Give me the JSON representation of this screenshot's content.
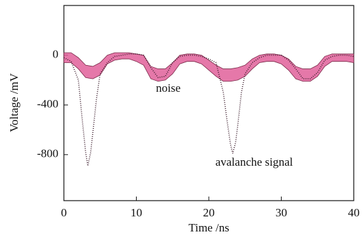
{
  "chart_data": {
    "type": "line",
    "x_label": "Time /ns",
    "y_label": "Voltage /mV",
    "xlim": [
      0,
      40
    ],
    "xticks": [
      0,
      10,
      20,
      30,
      40
    ],
    "ylim": [
      -1170,
      400
    ],
    "yticks": [
      0,
      -400,
      -800
    ],
    "grid": false,
    "series": [
      {
        "name": "noise",
        "color": "#e0609a",
        "kind": "band",
        "x": [
          0,
          1,
          2,
          3,
          4,
          5,
          6,
          7,
          8,
          9,
          10,
          11,
          12,
          13,
          14,
          15,
          16,
          17,
          18,
          19,
          20,
          21,
          22,
          23,
          24,
          25,
          26,
          27,
          28,
          29,
          30,
          31,
          32,
          33,
          34,
          35,
          36,
          37,
          38,
          39,
          40
        ],
        "upper": [
          20,
          20,
          -20,
          -80,
          -90,
          -60,
          0,
          20,
          20,
          20,
          10,
          0,
          -90,
          -110,
          -110,
          -60,
          0,
          10,
          10,
          0,
          -40,
          -80,
          -110,
          -110,
          -100,
          -80,
          -30,
          0,
          10,
          10,
          0,
          -30,
          -90,
          -110,
          -110,
          -80,
          -10,
          10,
          10,
          10,
          10
        ],
        "lower": [
          -60,
          -60,
          -110,
          -180,
          -190,
          -160,
          -70,
          -40,
          -30,
          -30,
          -50,
          -80,
          -190,
          -210,
          -200,
          -150,
          -70,
          -50,
          -50,
          -70,
          -120,
          -170,
          -210,
          -210,
          -200,
          -170,
          -110,
          -60,
          -50,
          -50,
          -70,
          -120,
          -190,
          -210,
          -210,
          -170,
          -90,
          -50,
          -50,
          -50,
          -60
        ]
      },
      {
        "name": "avalanche signal",
        "color": "#3a1a2a",
        "kind": "dotted",
        "x": [
          0,
          1,
          2,
          2.5,
          3,
          3.3,
          3.7,
          4,
          4.5,
          5,
          6,
          7,
          8,
          9,
          10,
          11,
          12,
          13,
          14,
          15,
          16,
          17,
          18,
          19,
          20,
          21,
          22,
          22.5,
          23,
          23.3,
          23.7,
          24,
          24.5,
          25,
          26,
          27,
          28,
          29,
          30,
          31,
          32,
          33,
          34,
          35,
          36,
          37,
          38,
          39,
          40
        ],
        "values": [
          -20,
          -50,
          -200,
          -500,
          -780,
          -890,
          -780,
          -620,
          -350,
          -150,
          -60,
          -10,
          0,
          10,
          10,
          0,
          -100,
          -180,
          -170,
          -60,
          -10,
          0,
          0,
          -10,
          -30,
          -60,
          -300,
          -520,
          -720,
          -790,
          -700,
          -560,
          -300,
          -150,
          -60,
          -20,
          0,
          0,
          0,
          -40,
          -110,
          -190,
          -190,
          -140,
          -40,
          -10,
          0,
          0,
          -10
        ]
      }
    ]
  }
}
